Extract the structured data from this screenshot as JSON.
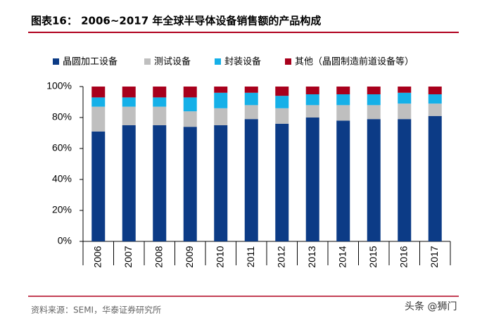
{
  "chart_data": {
    "type": "stacked_bar",
    "title": "图表16：  2006~2017 年全球半导体设备销售额的产品构成",
    "categories": [
      "2006",
      "2007",
      "2008",
      "2009",
      "2010",
      "2011",
      "2012",
      "2013",
      "2014",
      "2015",
      "2016",
      "2017"
    ],
    "series": [
      {
        "name": "晶圆加工设备",
        "color": "#0c3b86",
        "values": [
          71,
          75,
          75,
          74,
          75,
          79,
          76,
          80,
          78,
          79,
          79,
          81
        ]
      },
      {
        "name": "测试设备",
        "color": "#bfbfbf",
        "values": [
          16,
          12,
          12,
          10,
          11,
          9,
          10,
          8,
          10,
          9,
          10,
          8
        ]
      },
      {
        "name": "封装设备",
        "color": "#15b0e8",
        "values": [
          6,
          6,
          6,
          9,
          10,
          8,
          8,
          7,
          7,
          7,
          7,
          6
        ]
      },
      {
        "name": "其他（晶圆制造前道设备等）",
        "color": "#a8001c",
        "values": [
          7,
          7,
          7,
          7,
          4,
          4,
          6,
          5,
          5,
          5,
          4,
          5
        ]
      }
    ],
    "ylim": [
      0,
      100
    ],
    "yticks": [
      {
        "value": 0,
        "label": "0%"
      },
      {
        "value": 20,
        "label": "20%"
      },
      {
        "value": 40,
        "label": "40%"
      },
      {
        "value": 60,
        "label": "60%"
      },
      {
        "value": 80,
        "label": "80%"
      },
      {
        "value": 100,
        "label": "100%"
      }
    ],
    "source": "资料来源：SEMI，华泰证券研究所",
    "watermark": "头条 @狮门"
  }
}
